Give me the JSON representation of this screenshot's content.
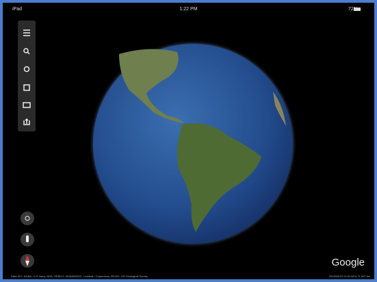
{
  "status_bar": {
    "device": "iPad",
    "time": "1:22 PM",
    "battery": "72%"
  },
  "brand": "Google",
  "attribution": {
    "left": "Data SIO, NOAA, U.S. Navy, NGA, GEBCO, NOAA/NGDC, Landsat / Copernicus, IBCAO, US Geological Survey",
    "right": "2019/04/15 11:15:18 N 71,597 km"
  }
}
